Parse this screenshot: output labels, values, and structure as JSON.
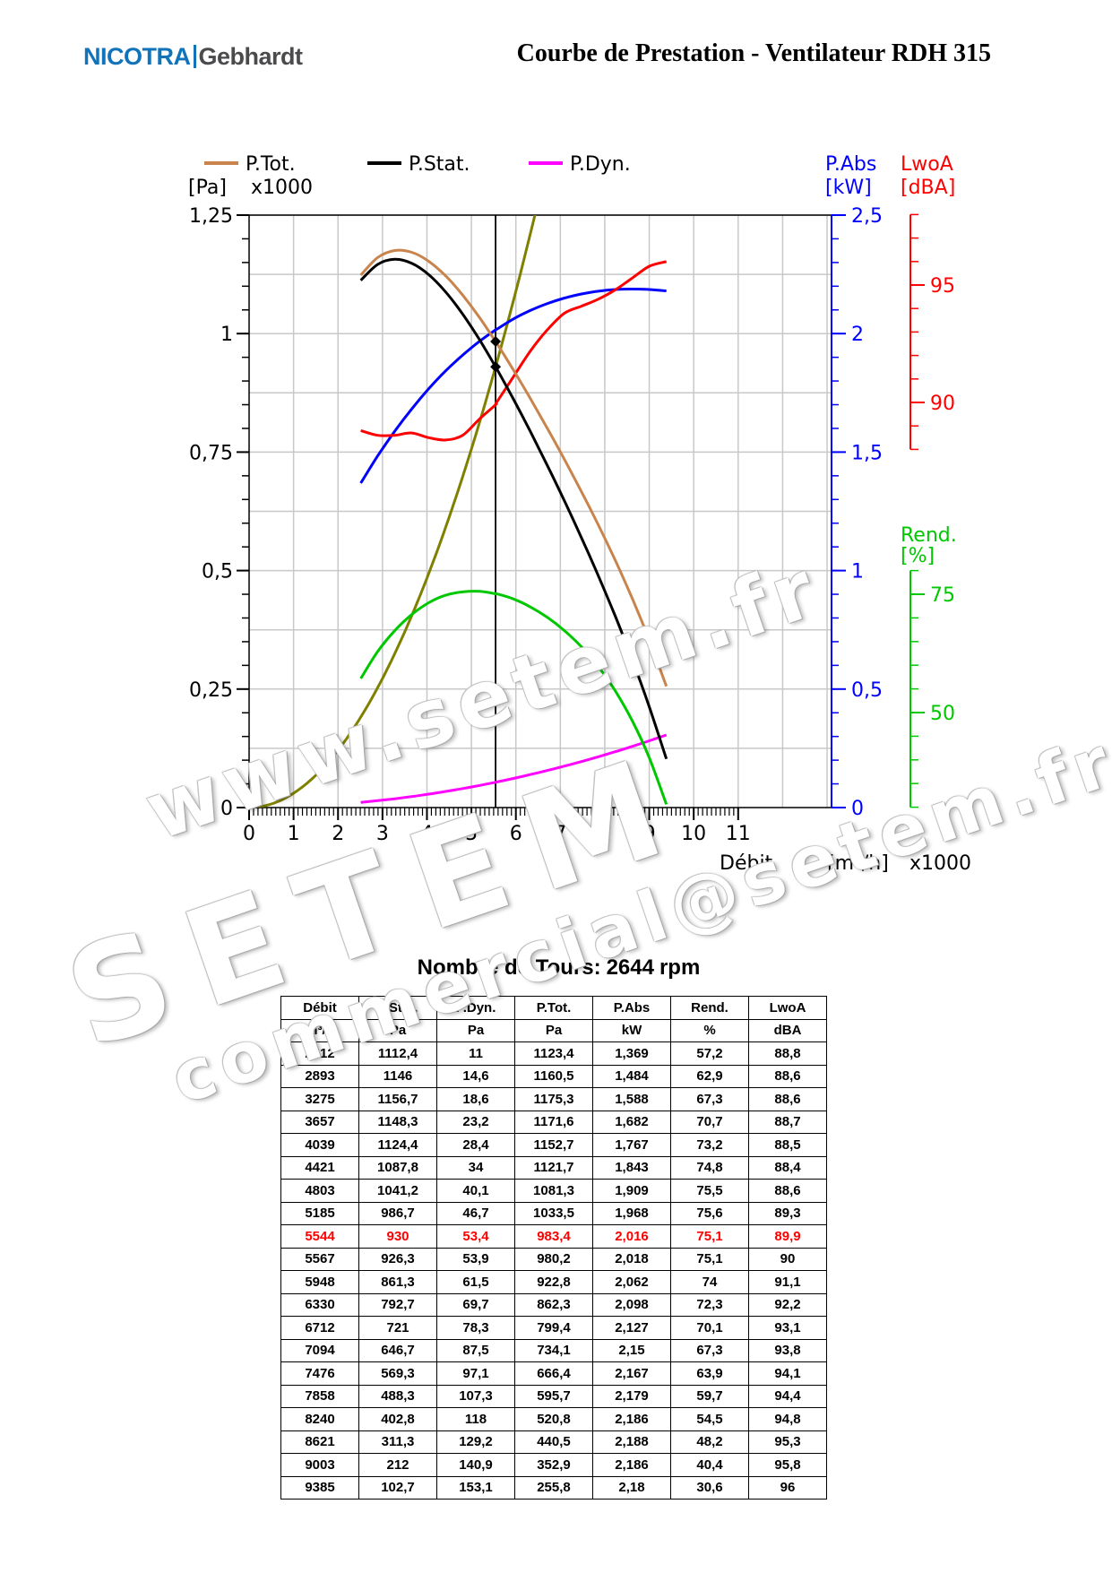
{
  "header": {
    "logo_part1": "NICOTRA",
    "logo_part2": "Gebhardt",
    "title": "Courbe de Prestation - Ventilateur RDH 315"
  },
  "watermarks": [
    "www.setem.fr",
    "SETEM",
    "commercial@setem.fr"
  ],
  "colors": {
    "ptot": "#c8844c",
    "pstat": "#000000",
    "pdyn": "#ff00ff",
    "pabs": "#0000ff",
    "lwoa": "#ff0000",
    "rend": "#00c800",
    "system": "#808000",
    "highlight": "#ff0000"
  },
  "chart_data": {
    "type": "line",
    "legend": [
      "P.Tot.",
      "P.Stat.",
      "P.Dyn."
    ],
    "left_axis": {
      "unit": "[Pa]",
      "scale": "x1000",
      "ticks": [
        "0",
        "0,25",
        "0,5",
        "0,75",
        "1",
        "1,25"
      ],
      "range": [
        0,
        1.25
      ]
    },
    "x_axis": {
      "label": "Débit",
      "unit": "[m³/h]",
      "scale": "x1000",
      "ticks": [
        "0",
        "1",
        "2",
        "3",
        "4",
        "5",
        "6",
        "7",
        "8",
        "9",
        "10",
        "11"
      ],
      "range": [
        0,
        11
      ]
    },
    "pabs_axis": {
      "title": "P.Abs",
      "unit": "[kW]",
      "ticks": [
        "0",
        "0,5",
        "1",
        "1,5",
        "2",
        "2,5"
      ],
      "range": [
        0,
        2.5
      ]
    },
    "lwoa_axis": {
      "title": "LwoA",
      "unit": "[dBA]",
      "ticks": [
        "90",
        "95"
      ],
      "range": [
        88,
        98
      ]
    },
    "rend_axis": {
      "title": "Rend.",
      "unit": "[%]",
      "ticks": [
        "50",
        "75"
      ],
      "range": [
        30,
        80
      ]
    },
    "operating_point": {
      "x": 5544,
      "pstat": 930,
      "ptot": 983.4
    },
    "x": [
      2512,
      2893,
      3275,
      3657,
      4039,
      4421,
      4803,
      5185,
      5544,
      5567,
      5948,
      6330,
      6712,
      7094,
      7476,
      7858,
      8240,
      8621,
      9003,
      9385
    ],
    "series": [
      {
        "name": "P.Tot.",
        "axis": "left",
        "values": [
          1123.4,
          1160.5,
          1175.3,
          1171.6,
          1152.7,
          1121.7,
          1081.3,
          1033.5,
          983.4,
          980.2,
          922.8,
          862.3,
          799.4,
          734.1,
          666.4,
          595.7,
          520.8,
          440.5,
          352.9,
          255.8
        ]
      },
      {
        "name": "P.Stat.",
        "axis": "left",
        "values": [
          1112.4,
          1146,
          1156.7,
          1148.3,
          1124.4,
          1087.8,
          1041.2,
          986.7,
          930,
          926.3,
          861.3,
          792.7,
          721,
          646.7,
          569.3,
          488.3,
          402.8,
          311.3,
          212,
          102.7
        ]
      },
      {
        "name": "P.Dyn.",
        "axis": "left",
        "values": [
          11,
          14.6,
          18.6,
          23.2,
          28.4,
          34,
          40.1,
          46.7,
          53.4,
          53.9,
          61.5,
          69.7,
          78.3,
          87.5,
          97.1,
          107.3,
          118,
          129.2,
          140.9,
          153.1
        ]
      },
      {
        "name": "P.Abs",
        "axis": "pabs",
        "values": [
          1.369,
          1.484,
          1.588,
          1.682,
          1.767,
          1.843,
          1.909,
          1.968,
          2.016,
          2.018,
          2.062,
          2.098,
          2.127,
          2.15,
          2.167,
          2.179,
          2.186,
          2.188,
          2.186,
          2.18
        ]
      },
      {
        "name": "Rend.",
        "axis": "rend",
        "values": [
          57.2,
          62.9,
          67.3,
          70.7,
          73.2,
          74.8,
          75.5,
          75.6,
          75.1,
          75.1,
          74,
          72.3,
          70.1,
          67.3,
          63.9,
          59.7,
          54.5,
          48.2,
          40.4,
          30.6
        ]
      },
      {
        "name": "LwoA",
        "axis": "lwoa",
        "values": [
          88.8,
          88.6,
          88.6,
          88.7,
          88.5,
          88.4,
          88.6,
          89.3,
          89.9,
          90,
          91.1,
          92.2,
          93.1,
          93.8,
          94.1,
          94.4,
          94.8,
          95.3,
          95.8,
          96
        ]
      }
    ],
    "system_curve": {
      "pressure_at_operating_point": 930,
      "flow_at_operating_point": 5544
    }
  },
  "table": {
    "title": "Nombre de Tours:",
    "rpm_value": "2644",
    "rpm_unit": "rpm",
    "headers": [
      "Débit",
      "P.Stat.",
      "P.Dyn.",
      "P.Tot.",
      "P.Abs",
      "Rend.",
      "LwoA"
    ],
    "units": [
      "m³/h",
      "Pa",
      "Pa",
      "Pa",
      "kW",
      "%",
      "dBA"
    ],
    "highlight_row": 8,
    "rows": [
      [
        "2512",
        "1112,4",
        "11",
        "1123,4",
        "1,369",
        "57,2",
        "88,8"
      ],
      [
        "2893",
        "1146",
        "14,6",
        "1160,5",
        "1,484",
        "62,9",
        "88,6"
      ],
      [
        "3275",
        "1156,7",
        "18,6",
        "1175,3",
        "1,588",
        "67,3",
        "88,6"
      ],
      [
        "3657",
        "1148,3",
        "23,2",
        "1171,6",
        "1,682",
        "70,7",
        "88,7"
      ],
      [
        "4039",
        "1124,4",
        "28,4",
        "1152,7",
        "1,767",
        "73,2",
        "88,5"
      ],
      [
        "4421",
        "1087,8",
        "34",
        "1121,7",
        "1,843",
        "74,8",
        "88,4"
      ],
      [
        "4803",
        "1041,2",
        "40,1",
        "1081,3",
        "1,909",
        "75,5",
        "88,6"
      ],
      [
        "5185",
        "986,7",
        "46,7",
        "1033,5",
        "1,968",
        "75,6",
        "89,3"
      ],
      [
        "5544",
        "930",
        "53,4",
        "983,4",
        "2,016",
        "75,1",
        "89,9"
      ],
      [
        "5567",
        "926,3",
        "53,9",
        "980,2",
        "2,018",
        "75,1",
        "90"
      ],
      [
        "5948",
        "861,3",
        "61,5",
        "922,8",
        "2,062",
        "74",
        "91,1"
      ],
      [
        "6330",
        "792,7",
        "69,7",
        "862,3",
        "2,098",
        "72,3",
        "92,2"
      ],
      [
        "6712",
        "721",
        "78,3",
        "799,4",
        "2,127",
        "70,1",
        "93,1"
      ],
      [
        "7094",
        "646,7",
        "87,5",
        "734,1",
        "2,15",
        "67,3",
        "93,8"
      ],
      [
        "7476",
        "569,3",
        "97,1",
        "666,4",
        "2,167",
        "63,9",
        "94,1"
      ],
      [
        "7858",
        "488,3",
        "107,3",
        "595,7",
        "2,179",
        "59,7",
        "94,4"
      ],
      [
        "8240",
        "402,8",
        "118",
        "520,8",
        "2,186",
        "54,5",
        "94,8"
      ],
      [
        "8621",
        "311,3",
        "129,2",
        "440,5",
        "2,188",
        "48,2",
        "95,3"
      ],
      [
        "9003",
        "212",
        "140,9",
        "352,9",
        "2,186",
        "40,4",
        "95,8"
      ],
      [
        "9385",
        "102,7",
        "153,1",
        "255,8",
        "2,18",
        "30,6",
        "96"
      ]
    ]
  }
}
